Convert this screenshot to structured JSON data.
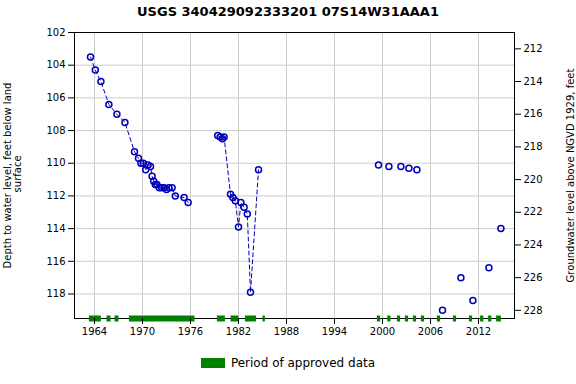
{
  "chart_data": {
    "type": "line",
    "title": "USGS 340429092333201 07S14W31AAA1",
    "ylabel": "Depth to water level, feet below land\n surface",
    "y2label": "Groundwater level above NGVD 1929, feet",
    "xlim": [
      1961.5,
      2016.5
    ],
    "xticks": [
      1964,
      1970,
      1976,
      1982,
      1988,
      1994,
      2000,
      2006,
      2012
    ],
    "ylim": [
      119.5,
      102
    ],
    "yticks": [
      102,
      104,
      106,
      108,
      110,
      112,
      114,
      116,
      118
    ],
    "y2lim": [
      228.5,
      211
    ],
    "y2ticks": [
      228,
      226,
      224,
      222,
      220,
      218,
      216,
      214,
      212
    ],
    "grid": true,
    "legend": "bottom",
    "series": [
      {
        "color": "#0000bb",
        "line_style": "dashed",
        "marker": "circle",
        "x": [
          1963.5,
          1964.1,
          1964.8,
          1965.8,
          1966.8,
          1967.8,
          1969.0,
          1969.5
        ],
        "values": [
          103.5,
          104.3,
          105.0,
          106.4,
          107.0,
          107.5,
          109.3,
          109.7
        ]
      },
      {
        "color": "#0000bb",
        "line_style": "dashed",
        "marker": "circle",
        "x": [
          1969.8,
          1970.1,
          1970.4,
          1970.7,
          1971.0,
          1971.2,
          1971.4,
          1971.6,
          1971.8,
          1972.1,
          1972.4,
          1972.7,
          1973.0,
          1973.3,
          1973.7,
          1974.1,
          1975.2,
          1975.7
        ],
        "values": [
          110.0,
          110.0,
          110.4,
          110.1,
          110.2,
          110.8,
          111.1,
          111.3,
          111.3,
          111.5,
          111.5,
          111.5,
          111.6,
          111.5,
          111.5,
          112.0,
          112.1,
          112.4
        ]
      },
      {
        "color": "#0000bb",
        "line_style": "dashed",
        "marker": "circle",
        "x": [
          1979.4,
          1979.7,
          1980.0,
          1980.2,
          1981.0,
          1981.3,
          1981.6,
          1982.0,
          1982.3,
          1982.7,
          1983.1,
          1983.5,
          1984.5
        ],
        "values": [
          108.3,
          108.4,
          108.5,
          108.4,
          111.9,
          112.1,
          112.3,
          113.9,
          112.4,
          112.7,
          113.1,
          117.9,
          110.4
        ]
      },
      {
        "color": "#0000bb",
        "line_style": "none",
        "marker": "circle",
        "x": [
          1999.5,
          2000.8,
          2002.3,
          2003.3,
          2004.3,
          2007.5,
          2009.8,
          2011.3,
          2013.3,
          2014.8
        ],
        "values": [
          110.1,
          110.2,
          110.2,
          110.3,
          110.4,
          119.0,
          117.0,
          118.4,
          116.4,
          114.0
        ]
      },
      {
        "name": "Period of approved data",
        "type": "span",
        "color": "#008000",
        "values": [
          [
            1963.3,
            1964.8
          ],
          [
            1965.5,
            1966.0
          ],
          [
            1966.5,
            1967.0
          ],
          [
            1968.3,
            1976.5
          ],
          [
            1979.3,
            1980.3
          ],
          [
            1981.0,
            1982.0
          ],
          [
            1982.8,
            1984.2
          ],
          [
            1985.0,
            1985.3
          ],
          [
            1999.3,
            1999.7
          ],
          [
            2000.6,
            2001.0
          ],
          [
            2001.8,
            2002.2
          ],
          [
            2002.8,
            2003.2
          ],
          [
            2003.8,
            2004.2
          ],
          [
            2004.8,
            2005.2
          ],
          [
            2006.8,
            2007.2
          ],
          [
            2008.8,
            2009.2
          ],
          [
            2010.8,
            2011.2
          ],
          [
            2012.2,
            2012.6
          ],
          [
            2013.2,
            2013.6
          ],
          [
            2014.2,
            2014.8
          ]
        ]
      }
    ]
  }
}
